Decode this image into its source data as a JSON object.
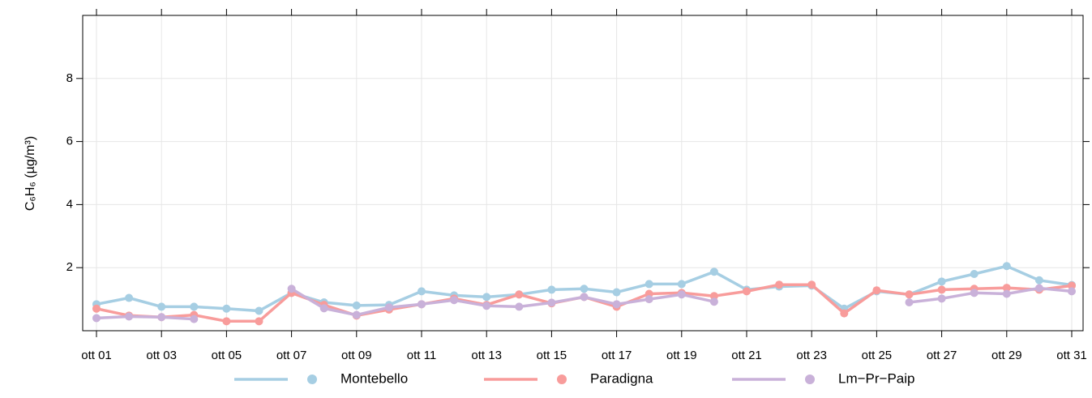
{
  "chart_data": {
    "type": "line",
    "y_label": "C₆H₆ (µg/m³)",
    "categories": [
      "ott 01",
      null,
      "ott 03",
      null,
      "ott 05",
      null,
      "ott 07",
      null,
      "ott 09",
      null,
      "ott 11",
      null,
      "ott 13",
      null,
      "ott 15",
      null,
      "ott 17",
      null,
      "ott 19",
      null,
      "ott 21",
      null,
      "ott 23",
      null,
      "ott 25",
      null,
      "ott 27",
      null,
      "ott 29",
      null,
      "ott 31"
    ],
    "series": [
      {
        "name": "Montebello",
        "color": "#a6cee3",
        "values": [
          0.84,
          1.04,
          0.76,
          0.76,
          0.7,
          0.63,
          1.2,
          0.9,
          0.8,
          0.82,
          1.25,
          1.12,
          1.07,
          1.15,
          1.3,
          1.33,
          1.22,
          1.48,
          1.48,
          1.87,
          1.3,
          1.4,
          1.43,
          0.7,
          1.25,
          1.15,
          1.56,
          1.8,
          2.05,
          1.6,
          1.45
        ]
      },
      {
        "name": "Paradigna",
        "color": "#f89c9b",
        "values": [
          0.7,
          0.48,
          0.43,
          0.5,
          0.3,
          0.3,
          1.2,
          0.82,
          0.48,
          0.67,
          0.84,
          1.02,
          0.82,
          1.15,
          0.87,
          1.07,
          0.76,
          1.17,
          1.2,
          1.1,
          1.25,
          1.46,
          1.46,
          0.55,
          1.28,
          1.15,
          1.3,
          1.33,
          1.36,
          1.3,
          1.43
        ]
      },
      {
        "name": "Lm−Pr−Paip",
        "color": "#c9b1d9",
        "values": [
          0.4,
          0.45,
          0.43,
          0.37,
          null,
          null,
          1.33,
          0.71,
          0.5,
          0.74,
          0.84,
          0.97,
          0.79,
          0.76,
          0.89,
          1.07,
          0.84,
          1.0,
          1.15,
          0.92,
          null,
          null,
          null,
          null,
          null,
          0.9,
          1.02,
          1.2,
          1.17,
          1.35,
          1.25
        ]
      }
    ],
    "ylim": [
      0,
      10
    ],
    "yticks": [
      2,
      4,
      6,
      8
    ],
    "grid": true,
    "legend": "bottom"
  }
}
